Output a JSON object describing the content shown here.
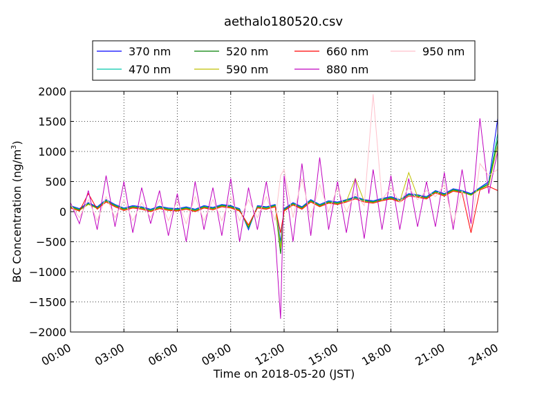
{
  "chart_data": {
    "type": "line",
    "title": "aethalo180520.csv",
    "xlabel": "Time on 2018-05-20 (JST)",
    "ylabel": "BC Concentration (ng/m",
    "ylabel_sup": "3",
    "ylabel_close": ")",
    "xlim": [
      0,
      24
    ],
    "ylim": [
      -2000,
      2000
    ],
    "grid": true,
    "legend_position": "top",
    "x_ticks": [
      {
        "value": 0,
        "label": "00:00"
      },
      {
        "value": 3,
        "label": "03:00"
      },
      {
        "value": 6,
        "label": "06:00"
      },
      {
        "value": 9,
        "label": "09:00"
      },
      {
        "value": 12,
        "label": "12:00"
      },
      {
        "value": 15,
        "label": "15:00"
      },
      {
        "value": 18,
        "label": "18:00"
      },
      {
        "value": 21,
        "label": "21:00"
      },
      {
        "value": 24,
        "label": "24:00"
      }
    ],
    "y_ticks": [
      {
        "value": 2000,
        "label": "2000"
      },
      {
        "value": 1500,
        "label": "1500"
      },
      {
        "value": 1000,
        "label": "1000"
      },
      {
        "value": 500,
        "label": "500"
      },
      {
        "value": 0,
        "label": "0"
      },
      {
        "value": -500,
        "label": "−500"
      },
      {
        "value": -1000,
        "label": "−1000"
      },
      {
        "value": -1500,
        "label": "−1500"
      },
      {
        "value": -2000,
        "label": "−2000"
      }
    ],
    "x": [
      0,
      0.5,
      1,
      1.5,
      2,
      2.5,
      3,
      3.5,
      4,
      4.5,
      5,
      5.5,
      6,
      6.5,
      7,
      7.5,
      8,
      8.5,
      9,
      9.5,
      10,
      10.5,
      11,
      11.5,
      11.8,
      12,
      12.5,
      13,
      13.5,
      14,
      14.5,
      15,
      15.5,
      16,
      16.5,
      17,
      17.5,
      18,
      18.5,
      19,
      19.5,
      20,
      20.5,
      21,
      21.5,
      22,
      22.5,
      23,
      23.5,
      24
    ],
    "series": [
      {
        "name": "370 nm",
        "color": "#0000ff",
        "values": [
          100,
          50,
          150,
          80,
          200,
          120,
          60,
          100,
          80,
          40,
          90,
          60,
          50,
          80,
          40,
          100,
          70,
          120,
          100,
          50,
          -300,
          100,
          80,
          120,
          -500,
          50,
          150,
          80,
          200,
          120,
          180,
          160,
          200,
          250,
          200,
          180,
          220,
          250,
          200,
          300,
          280,
          250,
          350,
          300,
          380,
          350,
          300,
          400,
          500,
          1550
        ]
      },
      {
        "name": "470 nm",
        "color": "#00c8aa",
        "values": [
          90,
          40,
          140,
          70,
          190,
          110,
          50,
          90,
          70,
          30,
          80,
          50,
          40,
          70,
          30,
          90,
          60,
          110,
          90,
          40,
          -280,
          90,
          70,
          110,
          -550,
          40,
          140,
          70,
          190,
          110,
          170,
          150,
          190,
          240,
          190,
          170,
          210,
          240,
          190,
          290,
          270,
          240,
          340,
          290,
          370,
          340,
          290,
          390,
          480,
          1300
        ]
      },
      {
        "name": "520 nm",
        "color": "#007f00",
        "values": [
          80,
          30,
          130,
          60,
          180,
          100,
          40,
          80,
          60,
          20,
          70,
          40,
          30,
          60,
          20,
          80,
          50,
          100,
          80,
          30,
          -260,
          80,
          60,
          100,
          -700,
          30,
          130,
          60,
          180,
          100,
          160,
          140,
          180,
          230,
          180,
          160,
          200,
          230,
          180,
          280,
          260,
          230,
          330,
          280,
          360,
          330,
          280,
          380,
          460,
          1200
        ]
      },
      {
        "name": "590 nm",
        "color": "#bfbf00",
        "values": [
          70,
          20,
          120,
          50,
          170,
          90,
          30,
          70,
          50,
          10,
          60,
          30,
          20,
          50,
          10,
          70,
          40,
          90,
          70,
          20,
          -240,
          70,
          50,
          90,
          -600,
          20,
          120,
          50,
          170,
          90,
          150,
          130,
          170,
          550,
          170,
          150,
          190,
          220,
          170,
          650,
          250,
          220,
          320,
          270,
          350,
          320,
          270,
          370,
          440,
          1100
        ]
      },
      {
        "name": "660 nm",
        "color": "#ff0000",
        "values": [
          60,
          10,
          300,
          40,
          160,
          80,
          20,
          60,
          40,
          0,
          50,
          20,
          10,
          40,
          0,
          60,
          30,
          80,
          60,
          10,
          -220,
          60,
          40,
          80,
          -350,
          10,
          110,
          40,
          160,
          80,
          140,
          120,
          160,
          210,
          160,
          140,
          180,
          210,
          160,
          260,
          240,
          210,
          310,
          260,
          340,
          310,
          -350,
          360,
          420,
          350
        ]
      },
      {
        "name": "880 nm",
        "color": "#bf00bf",
        "values": [
          150,
          -200,
          350,
          -300,
          600,
          -250,
          500,
          -350,
          400,
          -200,
          350,
          -400,
          300,
          -500,
          500,
          -300,
          400,
          -400,
          550,
          -500,
          400,
          -300,
          500,
          -400,
          -1780,
          600,
          -500,
          800,
          -400,
          900,
          -300,
          500,
          -350,
          550,
          -450,
          700,
          -300,
          600,
          -300,
          550,
          -250,
          500,
          -250,
          650,
          -300,
          700,
          -200,
          1550,
          300,
          1000
        ]
      },
      {
        "name": "950 nm",
        "color": "#ffc0cb",
        "values": [
          120,
          -100,
          200,
          -150,
          250,
          -100,
          200,
          -150,
          150,
          -100,
          200,
          -150,
          180,
          -200,
          250,
          -150,
          200,
          -150,
          250,
          -150,
          200,
          -100,
          250,
          -150,
          600,
          700,
          -100,
          550,
          -100,
          450,
          0,
          400,
          0,
          300,
          100,
          1950,
          200,
          400,
          150,
          400,
          200,
          350,
          250,
          450,
          -200,
          350,
          -300,
          800,
          600,
          700
        ]
      }
    ]
  }
}
